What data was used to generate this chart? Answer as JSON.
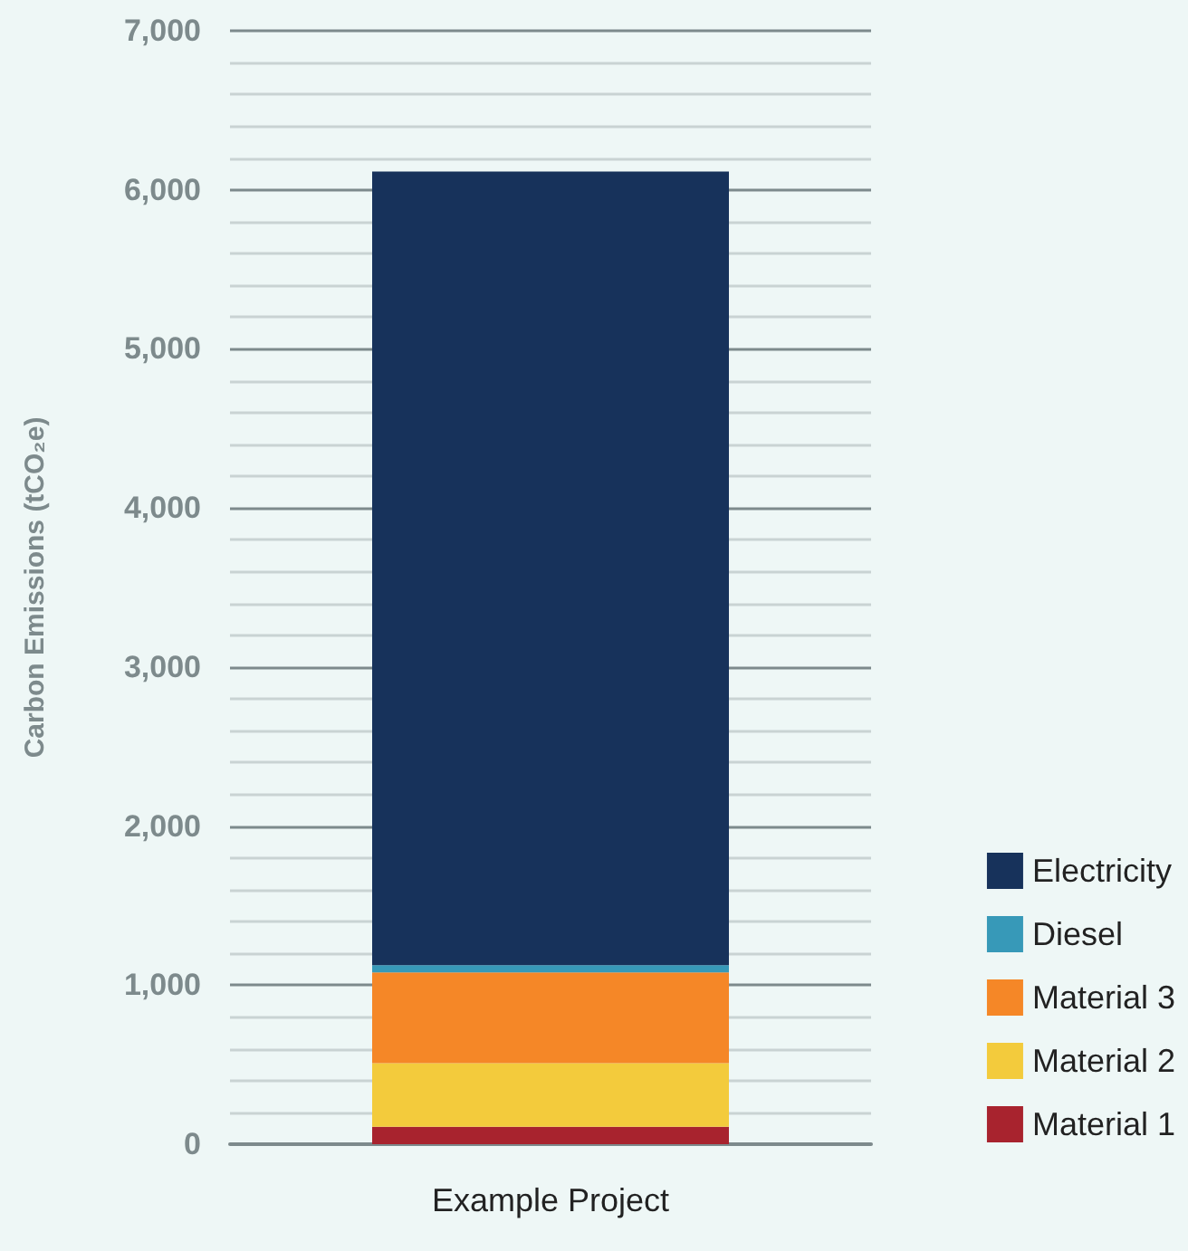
{
  "chart_data": {
    "type": "bar",
    "stacked": true,
    "ylabel": "Carbon Emissions (tCO₂e)",
    "categories": [
      "Example Project"
    ],
    "series": [
      {
        "name": "Material 1",
        "color": "#a8232e",
        "values": [
          110
        ]
      },
      {
        "name": "Material 2",
        "color": "#f3cb3c",
        "values": [
          400
        ]
      },
      {
        "name": "Material 3",
        "color": "#f58727",
        "values": [
          570
        ]
      },
      {
        "name": "Diesel",
        "color": "#3799b8",
        "values": [
          45
        ]
      },
      {
        "name": "Electricity",
        "color": "#17325b",
        "values": [
          4990
        ]
      }
    ],
    "ylim": [
      0,
      7000
    ],
    "yticks": [
      0,
      {
        "value": 200,
        "label": null
      },
      {
        "value": 400,
        "label": null
      },
      {
        "value": 600,
        "label": null
      },
      {
        "value": 800,
        "label": null
      },
      {
        "value": 1000,
        "label": "1,000"
      },
      {
        "value": 1200,
        "label": null
      },
      {
        "value": 1400,
        "label": null
      },
      {
        "value": 1600,
        "label": null
      },
      {
        "value": 1800,
        "label": null
      },
      {
        "value": 2000,
        "label": "2,000"
      },
      {
        "value": 2200,
        "label": null
      },
      {
        "value": 2400,
        "label": null
      },
      {
        "value": 2600,
        "label": null
      },
      {
        "value": 2800,
        "label": null
      },
      {
        "value": 3000,
        "label": "3,000"
      },
      {
        "value": 3200,
        "label": null
      },
      {
        "value": 3400,
        "label": null
      },
      {
        "value": 3600,
        "label": null
      },
      {
        "value": 3800,
        "label": null
      },
      {
        "value": 4000,
        "label": "4,000"
      },
      {
        "value": 4200,
        "label": null
      },
      {
        "value": 4400,
        "label": null
      },
      {
        "value": 4600,
        "label": null
      },
      {
        "value": 4800,
        "label": null
      },
      {
        "value": 5000,
        "label": "5,000"
      },
      {
        "value": 5200,
        "label": null
      },
      {
        "value": 5400,
        "label": null
      },
      {
        "value": 5600,
        "label": null
      },
      {
        "value": 5800,
        "label": null
      },
      {
        "value": 6000,
        "label": "6,000"
      },
      {
        "value": 6200,
        "label": null
      },
      {
        "value": 6400,
        "label": null
      },
      {
        "value": 6600,
        "label": null
      },
      {
        "value": 6800,
        "label": null
      },
      {
        "value": 7000,
        "label": "7,000"
      }
    ],
    "grid": true,
    "legend": "bottom right"
  }
}
